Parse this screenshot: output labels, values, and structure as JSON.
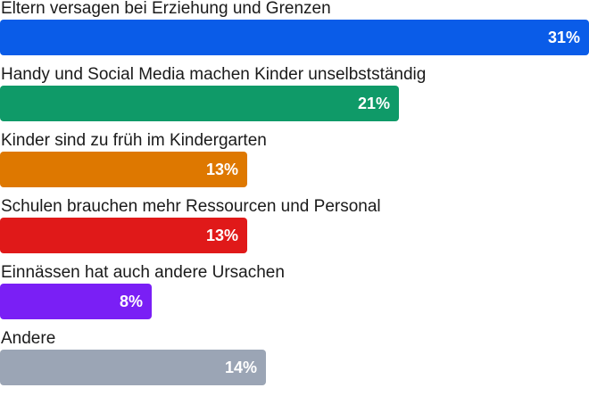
{
  "chart_data": {
    "type": "bar",
    "orientation": "horizontal",
    "categories": [
      "Eltern versagen bei Erziehung und Grenzen",
      "Handy und Social Media machen Kinder unselbstständig",
      "Kinder sind zu früh im Kindergarten",
      "Schulen brauchen mehr Ressourcen und Personal",
      "Einnässen hat auch andere Ursachen",
      "Andere"
    ],
    "values": [
      31,
      21,
      13,
      13,
      8,
      14
    ],
    "value_labels": [
      "31%",
      "21%",
      "13%",
      "13%",
      "8%",
      "14%"
    ],
    "colors": [
      "#0a5ce8",
      "#0f9a68",
      "#de7800",
      "#e01919",
      "#7a1ff5",
      "#9ba5b5"
    ],
    "xlim": [
      0,
      31
    ],
    "grid": false
  }
}
